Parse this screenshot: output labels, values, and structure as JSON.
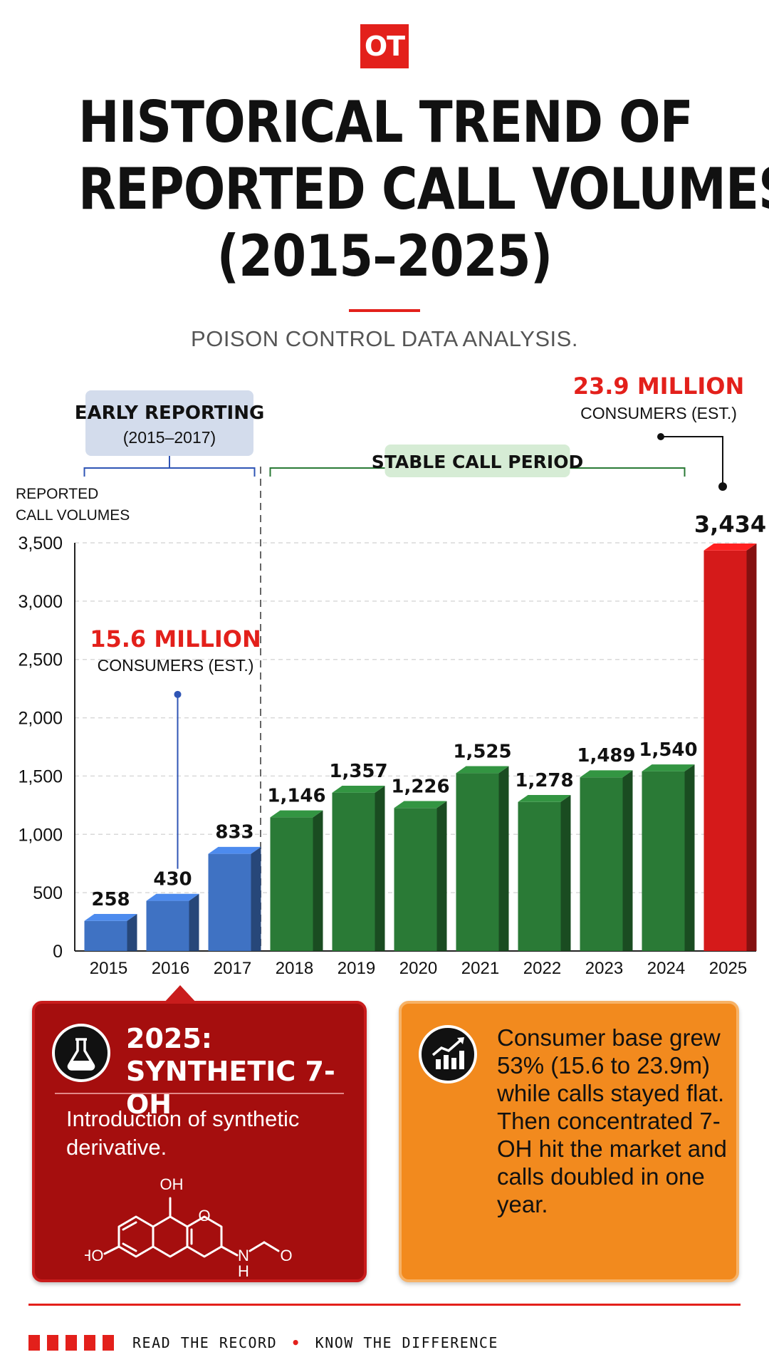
{
  "logo": "OT",
  "title_lines": [
    "HISTORICAL TREND OF",
    "REPORTED CALL VOLUMES",
    "(2015–2025)"
  ],
  "subtitle": "POISON CONTROL DATA ANALYSIS.",
  "accent_color": "#e3201b",
  "chart_data": {
    "type": "bar",
    "categories": [
      "2015",
      "2016",
      "2017",
      "2018",
      "2019",
      "2020",
      "2021",
      "2022",
      "2023",
      "2024",
      "2025"
    ],
    "values": [
      258,
      430,
      833,
      1146,
      1357,
      1226,
      1525,
      1278,
      1489,
      1540,
      3434
    ],
    "value_labels": [
      "258",
      "430",
      "833",
      "1,146",
      "1,357",
      "1,226",
      "1,525",
      "1,278",
      "1,489",
      "1,540",
      "3,434"
    ],
    "ylabel_lines": [
      "REPORTED",
      "CALL VOLUMES"
    ],
    "ylim": [
      0,
      3500
    ],
    "yticks": [
      0,
      500,
      1000,
      1500,
      2000,
      2500,
      3000,
      3500
    ],
    "ytick_labels": [
      "0",
      "500",
      "1,000",
      "1,500",
      "2,000",
      "2,500",
      "3,000",
      "3,500"
    ],
    "grid": true,
    "bar_colors": [
      "#3f72c3",
      "#3f72c3",
      "#3f72c3",
      "#2a7a36",
      "#2a7a36",
      "#2a7a36",
      "#2a7a36",
      "#2a7a36",
      "#2a7a36",
      "#2a7a36",
      "#d51a1a"
    ],
    "periods": [
      {
        "label": "EARLY REPORTING",
        "sublabel": "(2015–2017)",
        "from": "2015",
        "to": "2017",
        "color": "#2f55b5",
        "fill": "#d3dcec"
      },
      {
        "label": "STABLE CALL PERIOD",
        "sublabel": "",
        "from": "2018",
        "to": "2024",
        "color": "#2a7a36",
        "fill": "#d6ecd5"
      }
    ],
    "annotations": [
      {
        "value": "15.6 MILLION",
        "text": "CONSUMERS (EST.)",
        "points_to": "2016",
        "pointer_value": 2200,
        "color": "#e3201b"
      },
      {
        "value": "23.9 MILLION",
        "text": "CONSUMERS (EST.)",
        "points_to": "2025",
        "color": "#e3201b"
      }
    ]
  },
  "callouts": {
    "left": {
      "icon": "flask-icon",
      "heading_lines": [
        "2025:",
        "SYNTHETIC 7-OH"
      ],
      "body": "Introduction of synthetic derivative.",
      "molecule_labels": {
        "oh_top": "OH",
        "ho_left": "HO",
        "o_ring": "O",
        "n": "N",
        "h": "H",
        "o_chain": "O"
      }
    },
    "right": {
      "icon": "growth-chart-icon",
      "body": "Consumer base grew 53% (15.6 to 23.9m) while calls stayed flat. Then concentrated 7-OH hit the market and calls doubled in one year."
    }
  },
  "footer": {
    "left": "READ THE RECORD",
    "separator": "•",
    "right": "KNOW THE DIFFERENCE"
  }
}
